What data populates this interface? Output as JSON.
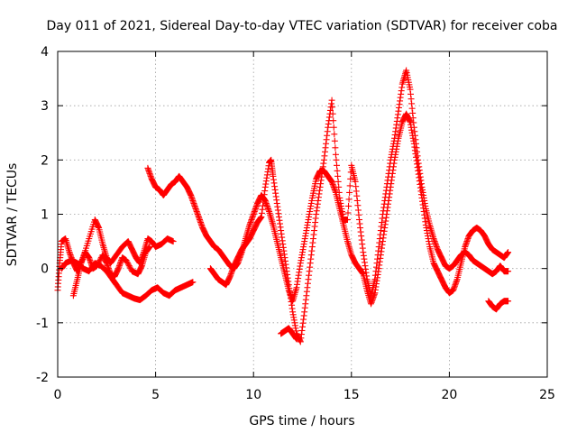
{
  "chart_data": {
    "type": "scatter",
    "title": "Day 011 of 2021, Sidereal Day-to-day VTEC variation (SDTVAR) for receiver coba",
    "xlabel": "GPS time / hours",
    "ylabel": "SDTVAR / TECUs",
    "xlim": [
      0,
      25
    ],
    "ylim": [
      -2,
      4
    ],
    "x_ticks": [
      "0",
      "5",
      "10",
      "15",
      "20",
      "25"
    ],
    "y_ticks": [
      "-2",
      "-1",
      "0",
      "1",
      "2",
      "3",
      "4"
    ],
    "x_tick_values": [
      0,
      5,
      10,
      15,
      20,
      25
    ],
    "y_tick_values": [
      -2,
      -1,
      0,
      1,
      2,
      3,
      4
    ],
    "grid": true,
    "marker": "plus",
    "color": "#ff0000",
    "series": [
      {
        "points": [
          [
            0,
            -0.4
          ],
          [
            0.1,
            0.1
          ],
          [
            0.2,
            0.5
          ],
          [
            0.4,
            0.55
          ],
          [
            0.6,
            0.3
          ],
          [
            0.8,
            0.1
          ],
          [
            1.0,
            -0.05
          ],
          [
            1.3,
            0.2
          ],
          [
            1.6,
            0.55
          ],
          [
            1.9,
            0.9
          ],
          [
            2.1,
            0.75
          ],
          [
            2.3,
            0.45
          ],
          [
            2.5,
            0.2
          ],
          [
            2.7,
            0.1
          ],
          [
            3.0,
            0.25
          ],
          [
            3.3,
            0.4
          ],
          [
            3.6,
            0.5
          ],
          [
            3.8,
            0.35
          ],
          [
            4.0,
            0.2
          ],
          [
            4.2,
            0.1
          ],
          [
            4.4,
            0.3
          ],
          [
            4.6,
            0.55
          ],
          [
            4.8,
            0.5
          ],
          [
            5.0,
            0.4
          ],
          [
            5.3,
            0.45
          ],
          [
            5.6,
            0.55
          ],
          [
            5.9,
            0.5
          ]
        ]
      },
      {
        "points": [
          [
            0.8,
            -0.5
          ],
          [
            1.0,
            -0.2
          ],
          [
            1.2,
            0.1
          ],
          [
            1.4,
            0.3
          ],
          [
            1.6,
            0.2
          ],
          [
            1.8,
            0.0
          ],
          [
            2.0,
            0.05
          ],
          [
            2.3,
            0.25
          ],
          [
            2.5,
            0.1
          ],
          [
            2.7,
            -0.1
          ],
          [
            2.9,
            -0.15
          ],
          [
            3.1,
            0.0
          ],
          [
            3.3,
            0.2
          ],
          [
            3.5,
            0.15
          ],
          [
            3.8,
            -0.05
          ],
          [
            4.1,
            -0.1
          ],
          [
            4.3,
            0.05
          ],
          [
            4.5,
            0.3
          ],
          [
            4.7,
            0.4
          ]
        ]
      },
      {
        "points": [
          [
            0.2,
            0.0
          ],
          [
            0.4,
            0.1
          ],
          [
            0.7,
            0.15
          ],
          [
            1.0,
            0.1
          ],
          [
            1.3,
            0.0
          ],
          [
            1.6,
            -0.05
          ],
          [
            1.9,
            0.1
          ],
          [
            2.2,
            0.05
          ],
          [
            2.5,
            -0.05
          ],
          [
            2.8,
            -0.2
          ],
          [
            3.0,
            -0.3
          ],
          [
            3.3,
            -0.45
          ],
          [
            3.6,
            -0.5
          ],
          [
            3.9,
            -0.55
          ],
          [
            4.2,
            -0.58
          ],
          [
            4.5,
            -0.5
          ],
          [
            4.8,
            -0.4
          ],
          [
            5.1,
            -0.35
          ],
          [
            5.4,
            -0.45
          ],
          [
            5.7,
            -0.5
          ],
          [
            6.0,
            -0.4
          ],
          [
            6.3,
            -0.35
          ],
          [
            6.6,
            -0.3
          ],
          [
            6.9,
            -0.25
          ]
        ]
      },
      {
        "points": [
          [
            4.6,
            1.85
          ],
          [
            4.8,
            1.65
          ],
          [
            5.0,
            1.5
          ],
          [
            5.2,
            1.45
          ],
          [
            5.4,
            1.35
          ],
          [
            5.6,
            1.45
          ],
          [
            5.8,
            1.55
          ],
          [
            6.0,
            1.6
          ],
          [
            6.2,
            1.7
          ],
          [
            6.4,
            1.6
          ],
          [
            6.6,
            1.5
          ],
          [
            6.8,
            1.35
          ],
          [
            7.0,
            1.15
          ],
          [
            7.2,
            0.95
          ],
          [
            7.4,
            0.75
          ],
          [
            7.6,
            0.6
          ],
          [
            7.8,
            0.5
          ],
          [
            8.0,
            0.4
          ],
          [
            8.2,
            0.35
          ],
          [
            8.4,
            0.25
          ],
          [
            8.6,
            0.15
          ],
          [
            8.8,
            0.05
          ],
          [
            9.0,
            0.0
          ],
          [
            9.2,
            0.1
          ],
          [
            9.4,
            0.3
          ],
          [
            9.6,
            0.55
          ],
          [
            9.8,
            0.8
          ],
          [
            10.0,
            1.0
          ],
          [
            10.2,
            1.2
          ],
          [
            10.4,
            1.35
          ],
          [
            10.6,
            1.25
          ],
          [
            10.8,
            1.05
          ],
          [
            11.0,
            0.8
          ],
          [
            11.2,
            0.5
          ],
          [
            11.4,
            0.2
          ],
          [
            11.6,
            -0.1
          ],
          [
            11.8,
            -0.4
          ],
          [
            12.0,
            -0.6
          ],
          [
            12.2,
            -0.35
          ],
          [
            12.4,
            0.1
          ],
          [
            12.6,
            0.5
          ],
          [
            12.8,
            0.9
          ],
          [
            13.0,
            1.3
          ],
          [
            13.2,
            1.65
          ],
          [
            13.4,
            1.8
          ],
          [
            13.6,
            1.8
          ],
          [
            13.8,
            1.7
          ],
          [
            14.0,
            1.6
          ],
          [
            14.2,
            1.4
          ],
          [
            14.4,
            1.1
          ],
          [
            14.6,
            0.8
          ],
          [
            14.8,
            0.5
          ],
          [
            15.0,
            0.25
          ],
          [
            15.2,
            0.1
          ],
          [
            15.4,
            0.0
          ],
          [
            15.6,
            -0.1
          ],
          [
            15.8,
            -0.4
          ],
          [
            16.0,
            -0.65
          ],
          [
            16.2,
            -0.45
          ],
          [
            16.4,
            0.0
          ],
          [
            16.6,
            0.5
          ],
          [
            16.8,
            1.0
          ],
          [
            17.0,
            1.5
          ],
          [
            17.2,
            2.0
          ],
          [
            17.4,
            2.4
          ],
          [
            17.6,
            2.7
          ],
          [
            17.8,
            2.85
          ],
          [
            18.0,
            2.7
          ],
          [
            18.2,
            2.3
          ],
          [
            18.4,
            1.8
          ],
          [
            18.6,
            1.3
          ],
          [
            18.8,
            0.8
          ],
          [
            19.0,
            0.4
          ],
          [
            19.2,
            0.1
          ],
          [
            19.4,
            -0.05
          ],
          [
            19.6,
            -0.2
          ],
          [
            19.8,
            -0.35
          ],
          [
            20.0,
            -0.45
          ],
          [
            20.2,
            -0.4
          ],
          [
            20.4,
            -0.2
          ],
          [
            20.6,
            0.1
          ],
          [
            20.8,
            0.4
          ],
          [
            21.0,
            0.6
          ],
          [
            21.2,
            0.7
          ],
          [
            21.4,
            0.75
          ],
          [
            21.6,
            0.7
          ],
          [
            21.8,
            0.6
          ],
          [
            22.0,
            0.45
          ],
          [
            22.2,
            0.35
          ],
          [
            22.4,
            0.3
          ],
          [
            22.6,
            0.25
          ],
          [
            22.8,
            0.2
          ],
          [
            23.0,
            0.3
          ]
        ]
      },
      {
        "points": [
          [
            7.8,
            0.0
          ],
          [
            8.0,
            -0.1
          ],
          [
            8.2,
            -0.2
          ],
          [
            8.4,
            -0.25
          ],
          [
            8.6,
            -0.3
          ],
          [
            8.8,
            -0.15
          ],
          [
            9.0,
            0.05
          ],
          [
            9.2,
            0.2
          ],
          [
            9.4,
            0.35
          ],
          [
            9.6,
            0.45
          ],
          [
            9.8,
            0.55
          ],
          [
            10.0,
            0.7
          ],
          [
            10.2,
            0.85
          ],
          [
            10.4,
            0.95
          ],
          [
            10.6,
            1.5
          ],
          [
            10.8,
            1.95
          ],
          [
            10.9,
            2.0
          ],
          [
            11.0,
            1.7
          ],
          [
            11.2,
            1.2
          ],
          [
            11.4,
            0.7
          ],
          [
            11.6,
            0.2
          ],
          [
            11.8,
            -0.3
          ],
          [
            12.0,
            -0.8
          ],
          [
            12.2,
            -1.2
          ],
          [
            12.4,
            -1.35
          ],
          [
            12.6,
            -0.8
          ],
          [
            12.8,
            -0.2
          ],
          [
            13.0,
            0.4
          ],
          [
            13.2,
            1.0
          ],
          [
            13.4,
            1.5
          ],
          [
            13.6,
            2.0
          ],
          [
            13.8,
            2.6
          ],
          [
            14.0,
            3.1
          ],
          [
            14.2,
            2.1
          ],
          [
            14.4,
            1.3
          ],
          [
            14.6,
            0.9
          ],
          [
            14.8,
            0.9
          ],
          [
            15.0,
            1.9
          ],
          [
            15.2,
            1.6
          ],
          [
            15.4,
            0.9
          ],
          [
            15.6,
            0.3
          ],
          [
            15.8,
            -0.2
          ],
          [
            16.0,
            -0.5
          ],
          [
            16.2,
            -0.2
          ],
          [
            16.4,
            0.4
          ],
          [
            16.6,
            1.0
          ],
          [
            16.8,
            1.5
          ],
          [
            17.0,
            2.0
          ],
          [
            17.2,
            2.4
          ],
          [
            17.4,
            2.9
          ],
          [
            17.6,
            3.4
          ],
          [
            17.8,
            3.65
          ],
          [
            18.0,
            3.3
          ],
          [
            18.2,
            2.6
          ],
          [
            18.4,
            2.0
          ],
          [
            18.6,
            1.5
          ],
          [
            18.8,
            1.1
          ],
          [
            19.0,
            0.8
          ],
          [
            19.2,
            0.55
          ],
          [
            19.4,
            0.35
          ],
          [
            19.6,
            0.2
          ],
          [
            19.8,
            0.05
          ],
          [
            20.0,
            0.0
          ],
          [
            20.2,
            0.05
          ],
          [
            20.4,
            0.15
          ],
          [
            20.6,
            0.25
          ],
          [
            20.8,
            0.3
          ],
          [
            21.0,
            0.25
          ],
          [
            21.2,
            0.15
          ],
          [
            21.4,
            0.1
          ],
          [
            21.6,
            0.05
          ],
          [
            21.8,
            0.0
          ],
          [
            22.0,
            -0.05
          ],
          [
            22.2,
            -0.1
          ],
          [
            22.4,
            -0.05
          ],
          [
            22.6,
            0.05
          ],
          [
            22.8,
            -0.05
          ],
          [
            23.0,
            -0.05
          ]
        ]
      },
      {
        "points": [
          [
            11.4,
            -1.2
          ],
          [
            11.6,
            -1.15
          ],
          [
            11.8,
            -1.1
          ],
          [
            12.0,
            -1.2
          ],
          [
            12.2,
            -1.3
          ]
        ]
      },
      {
        "points": [
          [
            22.0,
            -0.6
          ],
          [
            22.2,
            -0.7
          ],
          [
            22.4,
            -0.75
          ],
          [
            22.6,
            -0.65
          ],
          [
            22.8,
            -0.6
          ],
          [
            23.0,
            -0.6
          ]
        ]
      }
    ]
  }
}
